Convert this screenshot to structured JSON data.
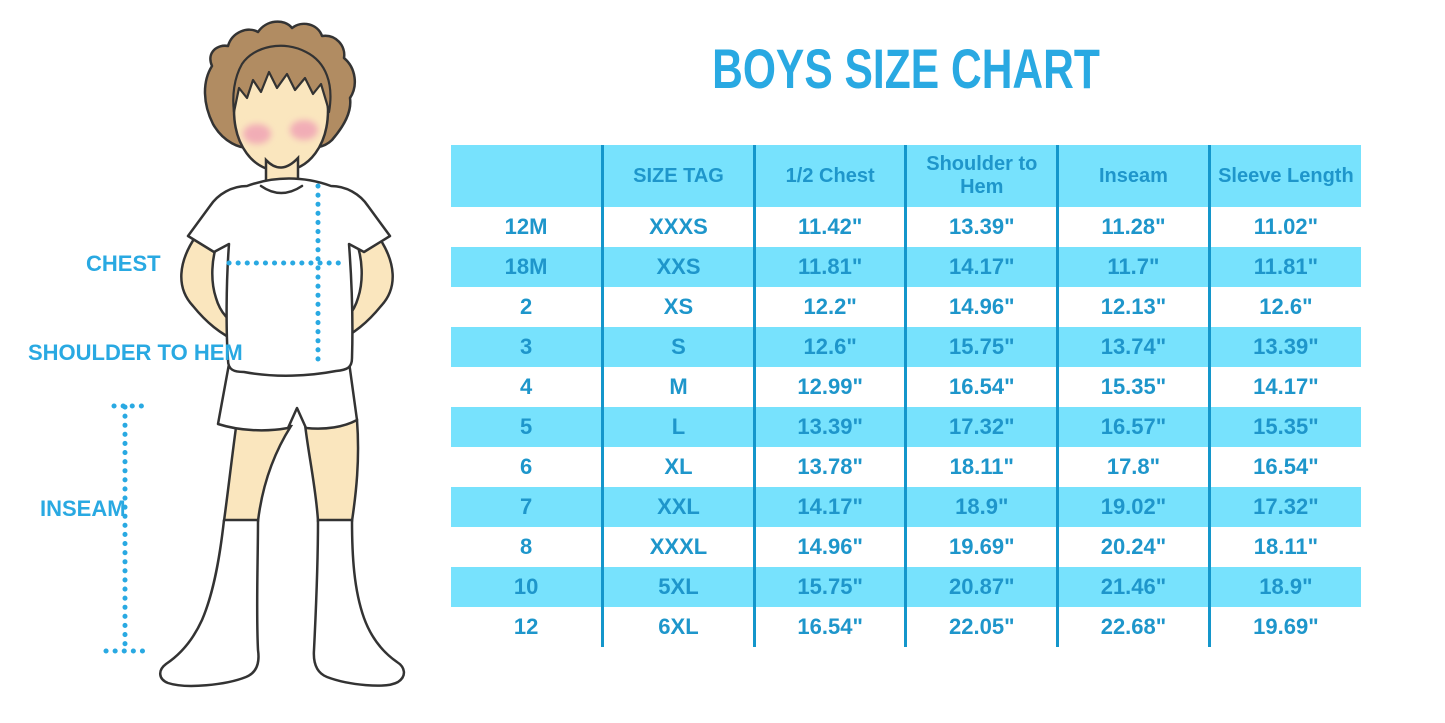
{
  "chart_data": {
    "type": "table",
    "title": "BOYS SIZE CHART",
    "columns": [
      "",
      "SIZE TAG",
      "1/2 Chest",
      "Shoulder to Hem",
      "Inseam",
      "Sleeve Length"
    ],
    "rows": [
      [
        "12M",
        "XXXS",
        "11.42\"",
        "13.39\"",
        "11.28\"",
        "11.02\""
      ],
      [
        "18M",
        "XXS",
        "11.81\"",
        "14.17\"",
        "11.7\"",
        "11.81\""
      ],
      [
        "2",
        "XS",
        "12.2\"",
        "14.96\"",
        "12.13\"",
        "12.6\""
      ],
      [
        "3",
        "S",
        "12.6\"",
        "15.75\"",
        "13.74\"",
        "13.39\""
      ],
      [
        "4",
        "M",
        "12.99\"",
        "16.54\"",
        "15.35\"",
        "14.17\""
      ],
      [
        "5",
        "L",
        "13.39\"",
        "17.32\"",
        "16.57\"",
        "15.35\""
      ],
      [
        "6",
        "XL",
        "13.78\"",
        "18.11\"",
        "17.8\"",
        "16.54\""
      ],
      [
        "7",
        "XXL",
        "14.17\"",
        "18.9\"",
        "19.02\"",
        "17.32\""
      ],
      [
        "8",
        "XXXL",
        "14.96\"",
        "19.69\"",
        "20.24\"",
        "18.11\""
      ],
      [
        "10",
        "5XL",
        "15.75\"",
        "20.87\"",
        "21.46\"",
        "18.9\""
      ],
      [
        "12",
        "6XL",
        "16.54\"",
        "22.05\"",
        "22.68\"",
        "19.69\""
      ]
    ],
    "layout": {
      "striping": "alternating white and cyan rows, cyan header",
      "grid": "vertical dividers only"
    }
  },
  "figure": {
    "illustration": "cartoon boy standing, hands on hips, white t-shirt, white shorts, knee-high white socks",
    "labels": {
      "chest": "CHEST",
      "shoulder_to_hem": "SHOULDER TO HEM",
      "inseam": "INSEAM"
    }
  },
  "colors": {
    "accent_blue": "#29A9E2",
    "row_cyan": "#77E2FD",
    "divider_blue": "#1496CB",
    "table_text_blue": "#1E96CB",
    "skin": "#FAE6BE",
    "hair": "#B18C62",
    "blush": "#F0A3B5"
  }
}
